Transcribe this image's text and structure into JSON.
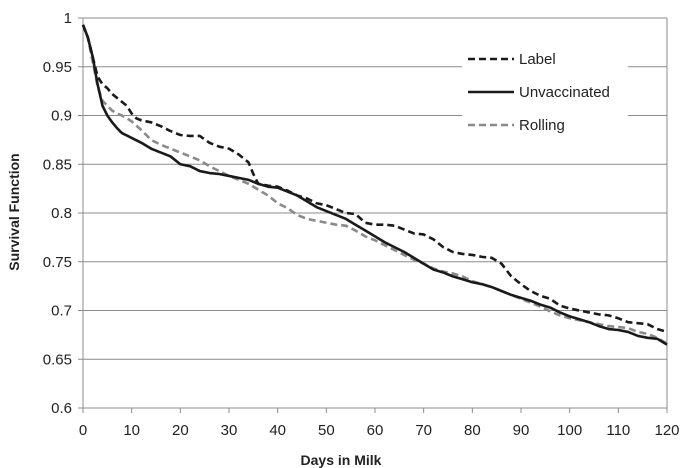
{
  "chart_data": {
    "type": "line",
    "title": "",
    "xlabel": "Days in Milk",
    "ylabel": "Survival Function",
    "xlim": [
      0,
      120
    ],
    "ylim": [
      0.6,
      1
    ],
    "x_ticks": [
      0,
      10,
      20,
      30,
      40,
      50,
      60,
      70,
      80,
      90,
      100,
      110,
      120
    ],
    "y_ticks": [
      0.6,
      0.65,
      0.7,
      0.75,
      0.8,
      0.85,
      0.9,
      0.95,
      1
    ],
    "x_tick_labels": [
      "0",
      "10",
      "20",
      "30",
      "40",
      "50",
      "60",
      "70",
      "80",
      "90",
      "100",
      "110",
      "120"
    ],
    "y_tick_labels": [
      "0.6",
      "0.65",
      "0.7",
      "0.75",
      "0.8",
      "0.85",
      "0.9",
      "0.95",
      "1"
    ],
    "grid": "horizontal",
    "legend_position": "top-right",
    "series": [
      {
        "name": "Label",
        "style": "dashed",
        "color": "#1a1a1a",
        "points": [
          [
            0,
            0.993
          ],
          [
            1,
            0.98
          ],
          [
            2,
            0.96
          ],
          [
            3,
            0.94
          ],
          [
            4,
            0.932
          ],
          [
            5,
            0.928
          ],
          [
            6,
            0.922
          ],
          [
            7,
            0.918
          ],
          [
            8,
            0.914
          ],
          [
            9,
            0.91
          ],
          [
            10,
            0.902
          ],
          [
            11,
            0.897
          ],
          [
            12,
            0.895
          ],
          [
            14,
            0.893
          ],
          [
            16,
            0.889
          ],
          [
            18,
            0.884
          ],
          [
            20,
            0.88
          ],
          [
            22,
            0.879
          ],
          [
            24,
            0.879
          ],
          [
            26,
            0.872
          ],
          [
            28,
            0.868
          ],
          [
            30,
            0.866
          ],
          [
            32,
            0.86
          ],
          [
            34,
            0.852
          ],
          [
            35,
            0.84
          ],
          [
            36,
            0.83
          ],
          [
            38,
            0.828
          ],
          [
            40,
            0.827
          ],
          [
            42,
            0.823
          ],
          [
            44,
            0.818
          ],
          [
            46,
            0.815
          ],
          [
            48,
            0.81
          ],
          [
            50,
            0.808
          ],
          [
            52,
            0.804
          ],
          [
            54,
            0.8
          ],
          [
            56,
            0.799
          ],
          [
            58,
            0.79
          ],
          [
            60,
            0.788
          ],
          [
            62,
            0.788
          ],
          [
            64,
            0.787
          ],
          [
            66,
            0.783
          ],
          [
            68,
            0.779
          ],
          [
            70,
            0.778
          ],
          [
            72,
            0.773
          ],
          [
            74,
            0.765
          ],
          [
            76,
            0.76
          ],
          [
            78,
            0.758
          ],
          [
            80,
            0.757
          ],
          [
            82,
            0.755
          ],
          [
            84,
            0.754
          ],
          [
            86,
            0.748
          ],
          [
            88,
            0.735
          ],
          [
            90,
            0.727
          ],
          [
            92,
            0.72
          ],
          [
            94,
            0.715
          ],
          [
            96,
            0.712
          ],
          [
            98,
            0.705
          ],
          [
            100,
            0.702
          ],
          [
            102,
            0.7
          ],
          [
            104,
            0.698
          ],
          [
            106,
            0.696
          ],
          [
            108,
            0.695
          ],
          [
            110,
            0.692
          ],
          [
            112,
            0.688
          ],
          [
            114,
            0.687
          ],
          [
            116,
            0.686
          ],
          [
            118,
            0.681
          ],
          [
            120,
            0.678
          ]
        ]
      },
      {
        "name": "Unvaccinated",
        "style": "solid",
        "color": "#1a1a1a",
        "points": [
          [
            0,
            0.993
          ],
          [
            1,
            0.98
          ],
          [
            2,
            0.96
          ],
          [
            3,
            0.932
          ],
          [
            4,
            0.91
          ],
          [
            5,
            0.9
          ],
          [
            6,
            0.893
          ],
          [
            7,
            0.887
          ],
          [
            8,
            0.882
          ],
          [
            10,
            0.877
          ],
          [
            12,
            0.872
          ],
          [
            14,
            0.866
          ],
          [
            16,
            0.862
          ],
          [
            18,
            0.858
          ],
          [
            20,
            0.85
          ],
          [
            22,
            0.848
          ],
          [
            24,
            0.843
          ],
          [
            26,
            0.841
          ],
          [
            28,
            0.84
          ],
          [
            30,
            0.838
          ],
          [
            32,
            0.836
          ],
          [
            34,
            0.834
          ],
          [
            36,
            0.83
          ],
          [
            38,
            0.827
          ],
          [
            40,
            0.826
          ],
          [
            42,
            0.822
          ],
          [
            44,
            0.818
          ],
          [
            46,
            0.812
          ],
          [
            48,
            0.806
          ],
          [
            50,
            0.802
          ],
          [
            52,
            0.798
          ],
          [
            54,
            0.794
          ],
          [
            56,
            0.788
          ],
          [
            58,
            0.782
          ],
          [
            60,
            0.776
          ],
          [
            62,
            0.77
          ],
          [
            64,
            0.765
          ],
          [
            66,
            0.76
          ],
          [
            68,
            0.754
          ],
          [
            70,
            0.748
          ],
          [
            72,
            0.742
          ],
          [
            74,
            0.739
          ],
          [
            76,
            0.735
          ],
          [
            78,
            0.732
          ],
          [
            80,
            0.729
          ],
          [
            82,
            0.727
          ],
          [
            84,
            0.724
          ],
          [
            86,
            0.72
          ],
          [
            88,
            0.716
          ],
          [
            90,
            0.713
          ],
          [
            92,
            0.71
          ],
          [
            94,
            0.706
          ],
          [
            96,
            0.703
          ],
          [
            98,
            0.698
          ],
          [
            100,
            0.694
          ],
          [
            102,
            0.691
          ],
          [
            104,
            0.688
          ],
          [
            106,
            0.684
          ],
          [
            108,
            0.681
          ],
          [
            110,
            0.68
          ],
          [
            112,
            0.678
          ],
          [
            114,
            0.674
          ],
          [
            116,
            0.672
          ],
          [
            118,
            0.671
          ],
          [
            120,
            0.665
          ]
        ]
      },
      {
        "name": "Rolling",
        "style": "dashed",
        "color": "#8a8a8a",
        "points": [
          [
            0,
            0.993
          ],
          [
            1,
            0.98
          ],
          [
            2,
            0.955
          ],
          [
            3,
            0.93
          ],
          [
            4,
            0.915
          ],
          [
            5,
            0.91
          ],
          [
            6,
            0.905
          ],
          [
            7,
            0.902
          ],
          [
            8,
            0.9
          ],
          [
            10,
            0.894
          ],
          [
            12,
            0.885
          ],
          [
            14,
            0.875
          ],
          [
            16,
            0.87
          ],
          [
            18,
            0.866
          ],
          [
            20,
            0.862
          ],
          [
            22,
            0.858
          ],
          [
            24,
            0.854
          ],
          [
            26,
            0.848
          ],
          [
            28,
            0.843
          ],
          [
            30,
            0.838
          ],
          [
            32,
            0.834
          ],
          [
            34,
            0.83
          ],
          [
            36,
            0.824
          ],
          [
            38,
            0.818
          ],
          [
            40,
            0.81
          ],
          [
            42,
            0.805
          ],
          [
            44,
            0.798
          ],
          [
            46,
            0.794
          ],
          [
            48,
            0.792
          ],
          [
            50,
            0.79
          ],
          [
            52,
            0.788
          ],
          [
            54,
            0.787
          ],
          [
            56,
            0.782
          ],
          [
            58,
            0.776
          ],
          [
            60,
            0.772
          ],
          [
            62,
            0.767
          ],
          [
            64,
            0.762
          ],
          [
            66,
            0.757
          ],
          [
            68,
            0.752
          ],
          [
            70,
            0.748
          ],
          [
            72,
            0.743
          ],
          [
            74,
            0.74
          ],
          [
            76,
            0.738
          ],
          [
            78,
            0.735
          ],
          [
            80,
            0.73
          ],
          [
            82,
            0.727
          ],
          [
            84,
            0.724
          ],
          [
            86,
            0.72
          ],
          [
            88,
            0.716
          ],
          [
            90,
            0.712
          ],
          [
            92,
            0.708
          ],
          [
            94,
            0.704
          ],
          [
            96,
            0.699
          ],
          [
            98,
            0.695
          ],
          [
            100,
            0.692
          ],
          [
            102,
            0.69
          ],
          [
            104,
            0.688
          ],
          [
            106,
            0.686
          ],
          [
            108,
            0.684
          ],
          [
            110,
            0.683
          ],
          [
            112,
            0.682
          ],
          [
            114,
            0.678
          ],
          [
            116,
            0.676
          ],
          [
            118,
            0.672
          ],
          [
            120,
            0.666
          ]
        ]
      }
    ]
  }
}
